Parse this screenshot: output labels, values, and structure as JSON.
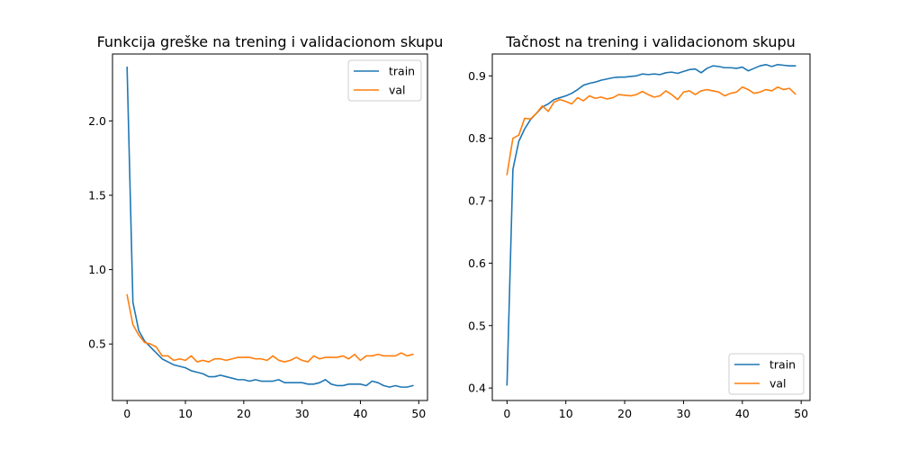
{
  "chart_data": [
    {
      "type": "line",
      "title": "Funkcija greške na trening i validacionom skupu",
      "xlabel": "",
      "ylabel": "",
      "xlim": [
        -2.5,
        51.5
      ],
      "ylim": [
        0.12,
        2.45
      ],
      "xticks": [
        0,
        10,
        20,
        30,
        40,
        50
      ],
      "yticks": [
        0.5,
        1.0,
        1.5,
        2.0
      ],
      "xtick_labels": [
        "0",
        "10",
        "20",
        "30",
        "40",
        "50"
      ],
      "ytick_labels": [
        "0.5",
        "1.0",
        "1.5",
        "2.0"
      ],
      "legend": "top-right",
      "x": [
        0,
        1,
        2,
        3,
        4,
        5,
        6,
        7,
        8,
        9,
        10,
        11,
        12,
        13,
        14,
        15,
        16,
        17,
        18,
        19,
        20,
        21,
        22,
        23,
        24,
        25,
        26,
        27,
        28,
        29,
        30,
        31,
        32,
        33,
        34,
        35,
        36,
        37,
        38,
        39,
        40,
        41,
        42,
        43,
        44,
        45,
        46,
        47,
        48,
        49
      ],
      "series": [
        {
          "name": "train",
          "color": "#1f77b4",
          "values": [
            2.36,
            0.78,
            0.59,
            0.52,
            0.48,
            0.44,
            0.4,
            0.38,
            0.36,
            0.35,
            0.34,
            0.32,
            0.31,
            0.3,
            0.28,
            0.28,
            0.29,
            0.28,
            0.27,
            0.26,
            0.26,
            0.25,
            0.26,
            0.25,
            0.25,
            0.25,
            0.26,
            0.24,
            0.24,
            0.24,
            0.24,
            0.23,
            0.23,
            0.24,
            0.26,
            0.23,
            0.22,
            0.22,
            0.23,
            0.23,
            0.23,
            0.22,
            0.25,
            0.24,
            0.22,
            0.21,
            0.22,
            0.21,
            0.21,
            0.22
          ]
        },
        {
          "name": "val",
          "color": "#ff7f0e",
          "values": [
            0.83,
            0.63,
            0.56,
            0.51,
            0.5,
            0.48,
            0.42,
            0.42,
            0.39,
            0.4,
            0.39,
            0.42,
            0.38,
            0.39,
            0.38,
            0.4,
            0.4,
            0.39,
            0.4,
            0.41,
            0.41,
            0.41,
            0.4,
            0.4,
            0.39,
            0.42,
            0.39,
            0.38,
            0.39,
            0.41,
            0.39,
            0.38,
            0.42,
            0.4,
            0.41,
            0.41,
            0.41,
            0.42,
            0.4,
            0.43,
            0.39,
            0.42,
            0.42,
            0.43,
            0.42,
            0.42,
            0.42,
            0.44,
            0.42,
            0.43
          ]
        }
      ]
    },
    {
      "type": "line",
      "title": "Tačnost na trening i validacionom skupu",
      "xlabel": "",
      "ylabel": "",
      "xlim": [
        -2.5,
        51.5
      ],
      "ylim": [
        0.38,
        0.935
      ],
      "xticks": [
        0,
        10,
        20,
        30,
        40,
        50
      ],
      "yticks": [
        0.4,
        0.5,
        0.6,
        0.7,
        0.8,
        0.9
      ],
      "xtick_labels": [
        "0",
        "10",
        "20",
        "30",
        "40",
        "50"
      ],
      "ytick_labels": [
        "0.4",
        "0.5",
        "0.6",
        "0.7",
        "0.8",
        "0.9"
      ],
      "legend": "bottom-right",
      "x": [
        0,
        1,
        2,
        3,
        4,
        5,
        6,
        7,
        8,
        9,
        10,
        11,
        12,
        13,
        14,
        15,
        16,
        17,
        18,
        19,
        20,
        21,
        22,
        23,
        24,
        25,
        26,
        27,
        28,
        29,
        30,
        31,
        32,
        33,
        34,
        35,
        36,
        37,
        38,
        39,
        40,
        41,
        42,
        43,
        44,
        45,
        46,
        47,
        48,
        49
      ],
      "series": [
        {
          "name": "train",
          "color": "#1f77b4",
          "values": [
            0.405,
            0.75,
            0.795,
            0.815,
            0.83,
            0.84,
            0.85,
            0.855,
            0.862,
            0.865,
            0.868,
            0.872,
            0.878,
            0.885,
            0.888,
            0.89,
            0.893,
            0.895,
            0.897,
            0.898,
            0.898,
            0.899,
            0.9,
            0.903,
            0.902,
            0.903,
            0.902,
            0.905,
            0.906,
            0.904,
            0.907,
            0.91,
            0.911,
            0.905,
            0.912,
            0.916,
            0.915,
            0.913,
            0.913,
            0.912,
            0.914,
            0.908,
            0.912,
            0.916,
            0.918,
            0.915,
            0.918,
            0.917,
            0.916,
            0.916
          ]
        },
        {
          "name": "val",
          "color": "#ff7f0e",
          "values": [
            0.742,
            0.8,
            0.805,
            0.832,
            0.831,
            0.84,
            0.852,
            0.843,
            0.858,
            0.862,
            0.859,
            0.855,
            0.865,
            0.86,
            0.868,
            0.864,
            0.866,
            0.863,
            0.865,
            0.87,
            0.869,
            0.868,
            0.87,
            0.875,
            0.87,
            0.866,
            0.868,
            0.876,
            0.87,
            0.862,
            0.874,
            0.876,
            0.87,
            0.876,
            0.878,
            0.876,
            0.874,
            0.868,
            0.872,
            0.874,
            0.882,
            0.878,
            0.872,
            0.874,
            0.878,
            0.876,
            0.882,
            0.878,
            0.88,
            0.871
          ]
        }
      ]
    }
  ]
}
